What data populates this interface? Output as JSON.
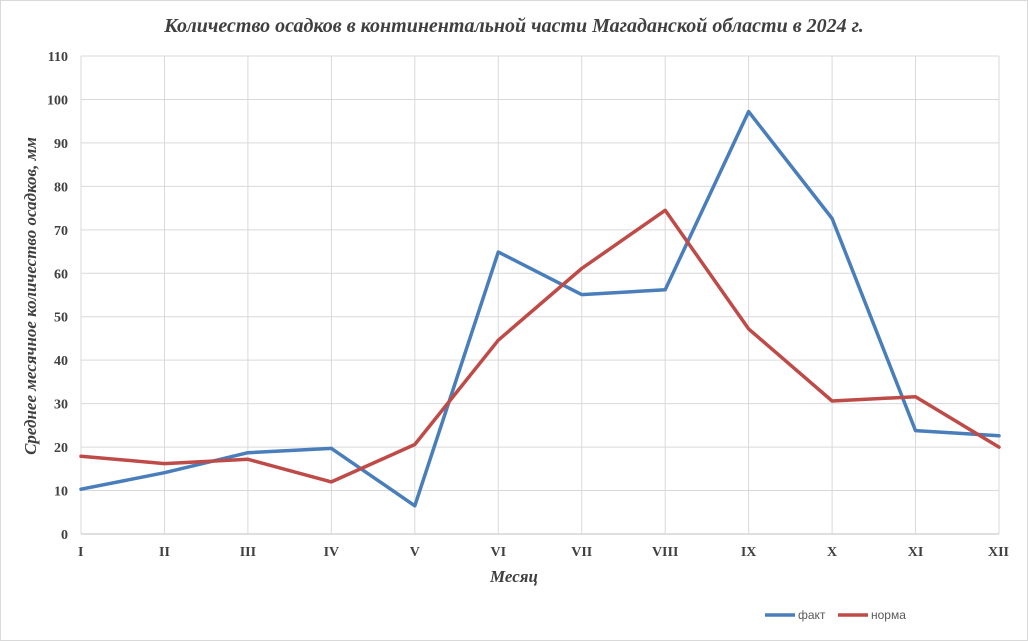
{
  "chart_data": {
    "type": "line",
    "title": "Количество осадков в континентальной части Магаданской области в 2024 г.",
    "xlabel": "Месяц",
    "ylabel": "Среднее месячное количество осадков, мм",
    "categories": [
      "I",
      "II",
      "III",
      "IV",
      "V",
      "VI",
      "VII",
      "VIII",
      "IX",
      "X",
      "XI",
      "XII"
    ],
    "ylim": [
      0,
      110
    ],
    "yticks": [
      0,
      10,
      20,
      30,
      40,
      50,
      60,
      70,
      80,
      90,
      100,
      110
    ],
    "grid": true,
    "legend_position": "bottom-right",
    "series": [
      {
        "name": "факт",
        "color": "#4a7ebb",
        "values": [
          10.3,
          14.1,
          18.7,
          19.7,
          6.5,
          64.9,
          55.1,
          56.2,
          97.2,
          72.6,
          23.8,
          22.6
        ]
      },
      {
        "name": "норма",
        "color": "#be4b48",
        "values": [
          17.9,
          16.2,
          17.2,
          12.0,
          20.6,
          44.6,
          61.1,
          74.5,
          47.2,
          30.6,
          31.6,
          20.0
        ]
      }
    ]
  }
}
